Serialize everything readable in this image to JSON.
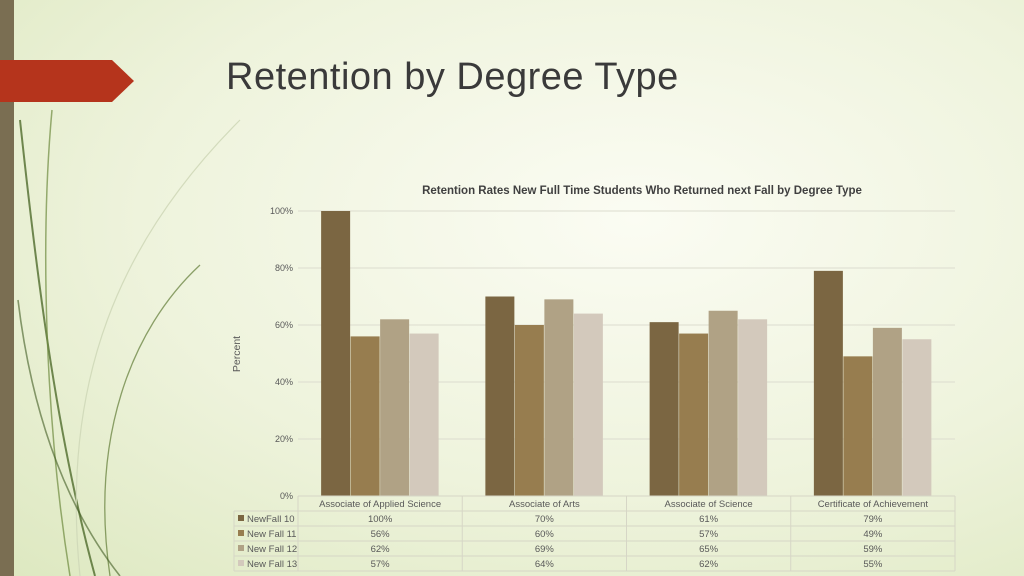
{
  "slide": {
    "title": "Retention by Degree Type"
  },
  "chart_data": {
    "type": "bar",
    "title": "Retention Rates New Full Time Students Who Returned next Fall by Degree Type",
    "ylabel": "Percent",
    "xlabel": "",
    "ylim": [
      0,
      100
    ],
    "yticks": [
      "0%",
      "20%",
      "40%",
      "60%",
      "80%",
      "100%"
    ],
    "categories": [
      "Associate of Applied Science",
      "Associate of Arts",
      "Associate of Science",
      "Certificate of Achievement"
    ],
    "series": [
      {
        "name": "NewFall 10",
        "color": "#7b6642",
        "values": [
          100,
          70,
          61,
          79
        ],
        "labels": [
          "100%",
          "70%",
          "61%",
          "79%"
        ]
      },
      {
        "name": "New Fall 11",
        "color": "#977d4f",
        "values": [
          56,
          60,
          57,
          49
        ],
        "labels": [
          "56%",
          "60%",
          "57%",
          "49%"
        ]
      },
      {
        "name": "New Fall 12",
        "color": "#b0a285",
        "values": [
          62,
          69,
          65,
          59
        ],
        "labels": [
          "62%",
          "69%",
          "65%",
          "59%"
        ]
      },
      {
        "name": "New Fall 13",
        "color": "#d3c9bc",
        "values": [
          57,
          64,
          62,
          55
        ],
        "labels": [
          "57%",
          "64%",
          "62%",
          "55%"
        ]
      }
    ],
    "grid": true,
    "legend": "data-table"
  }
}
